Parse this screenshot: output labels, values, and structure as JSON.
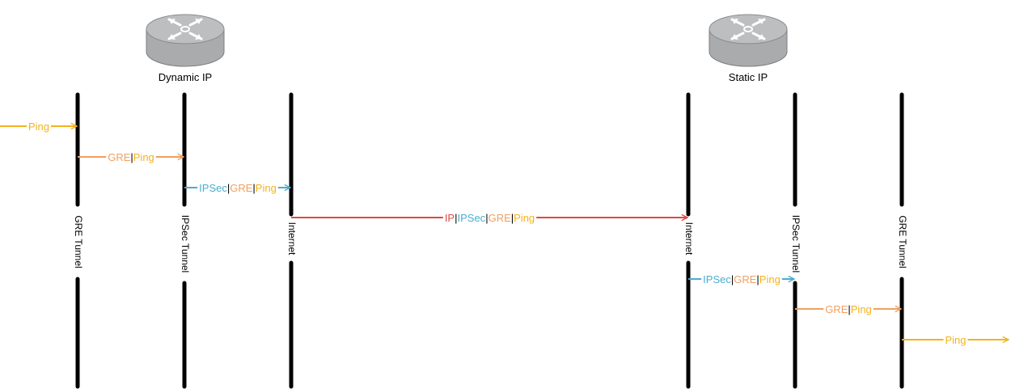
{
  "colors": {
    "ping": "#f5b21c",
    "gre": "#f0a060",
    "ipsec": "#4aadd0",
    "ip": "#dc4a44",
    "lifeline": "#000000",
    "router_body": "#a9abad",
    "router_top": "#bcbec0",
    "router_icon": "#ffffff"
  },
  "routers": [
    {
      "id": "left",
      "label": "Dynamic IP",
      "icon": "router-icon"
    },
    {
      "id": "right",
      "label": "Static IP",
      "icon": "router-icon"
    }
  ],
  "lifelines": [
    {
      "label": "GRE Tunnel"
    },
    {
      "label": "IPSec Tunnel"
    },
    {
      "label": "Internet"
    },
    {
      "label": "Internet"
    },
    {
      "label": "IPSec Tunnel"
    },
    {
      "label": "GRE Tunnel"
    }
  ],
  "messages": [
    {
      "line": "ping",
      "parts": [
        {
          "text": "Ping",
          "color": "ping"
        }
      ]
    },
    {
      "line": "gre",
      "parts": [
        {
          "text": "GRE",
          "color": "gre"
        },
        {
          "text": "|",
          "color": "sep"
        },
        {
          "text": "Ping",
          "color": "ping"
        }
      ]
    },
    {
      "line": "ipsec",
      "parts": [
        {
          "text": "IPSec",
          "color": "ipsec"
        },
        {
          "text": "|",
          "color": "sep"
        },
        {
          "text": "GRE",
          "color": "gre"
        },
        {
          "text": "|",
          "color": "sep"
        },
        {
          "text": "Ping",
          "color": "ping"
        }
      ]
    },
    {
      "line": "ip",
      "parts": [
        {
          "text": "IP",
          "color": "ip"
        },
        {
          "text": "|",
          "color": "sep"
        },
        {
          "text": "IPSec",
          "color": "ipsec"
        },
        {
          "text": "|",
          "color": "sep"
        },
        {
          "text": "GRE",
          "color": "gre"
        },
        {
          "text": "|",
          "color": "sep"
        },
        {
          "text": "Ping",
          "color": "ping"
        }
      ]
    },
    {
      "line": "ipsec",
      "parts": [
        {
          "text": "IPSec",
          "color": "ipsec"
        },
        {
          "text": "|",
          "color": "sep"
        },
        {
          "text": "GRE",
          "color": "gre"
        },
        {
          "text": "|",
          "color": "sep"
        },
        {
          "text": "Ping",
          "color": "ping"
        }
      ]
    },
    {
      "line": "gre",
      "parts": [
        {
          "text": "GRE",
          "color": "gre"
        },
        {
          "text": "|",
          "color": "sep"
        },
        {
          "text": "Ping",
          "color": "ping"
        }
      ]
    },
    {
      "line": "ping",
      "parts": [
        {
          "text": "Ping",
          "color": "ping"
        }
      ]
    }
  ]
}
